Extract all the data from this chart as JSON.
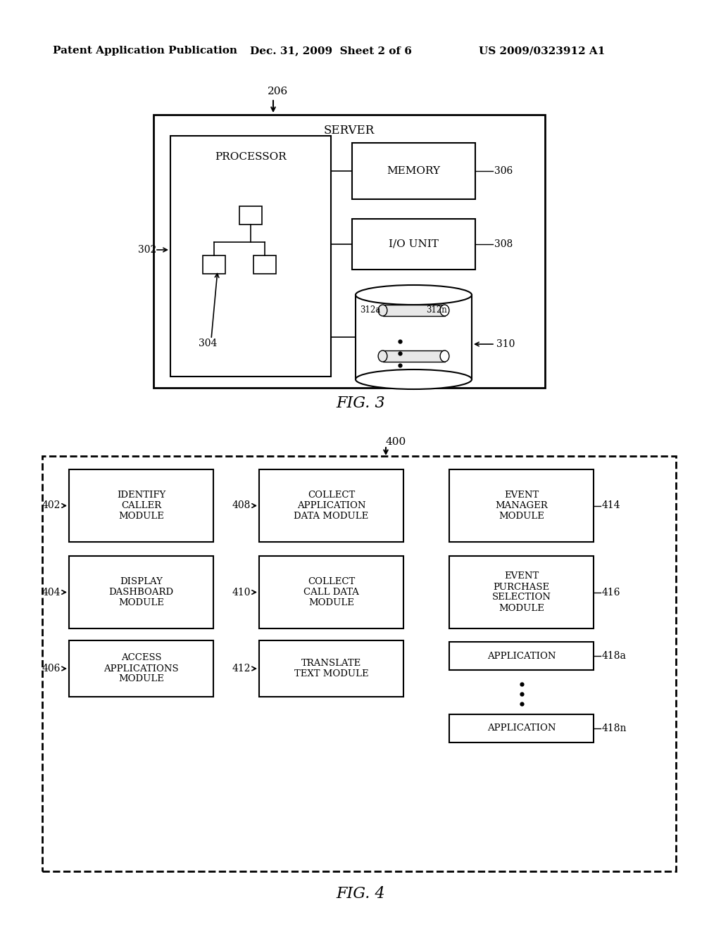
{
  "bg_color": "#ffffff",
  "header_left": "Patent Application Publication",
  "header_mid": "Dec. 31, 2009  Sheet 2 of 6",
  "header_right": "US 2009/0323912 A1",
  "fig3_label": "FIG. 3",
  "fig4_label": "FIG. 4",
  "fig3": {
    "server_label": "SERVER",
    "server_ref": "206",
    "processor_label": "PROCESSOR",
    "processor_ref": "302",
    "tree_ref": "304",
    "memory_label": "MEMORY",
    "memory_ref": "306",
    "io_label": "I/O UNIT",
    "io_ref": "308",
    "db_ref": "310",
    "db_label_a": "312a",
    "db_label_n": "312n"
  },
  "fig4": {
    "container_ref": "400",
    "mod_402": "IDENTIFY\nCALLER\nMODULE",
    "mod_404": "DISPLAY\nDASHBOARD\nMODULE",
    "mod_406": "ACCESS\nAPPLICATIONS\nMODULE",
    "mod_408": "COLLECT\nAPPLICATION\nDATA MODULE",
    "mod_410": "COLLECT\nCALL DATA\nMODULE",
    "mod_412": "TRANSLATE\nTEXT MODULE",
    "mod_414": "EVENT\nMANAGER\nMODULE",
    "mod_416": "EVENT\nPURCHASE\nSELECTION\nMODULE",
    "mod_418a": "APPLICATION",
    "mod_418n": "APPLICATION"
  }
}
